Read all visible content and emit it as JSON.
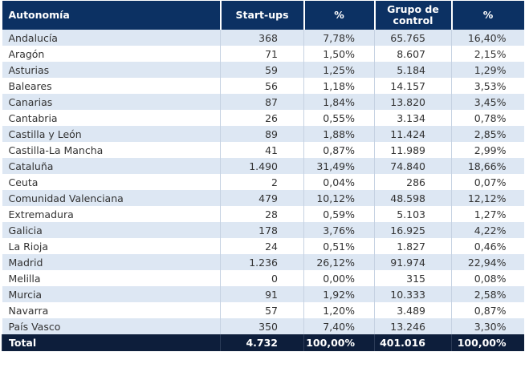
{
  "table": {
    "header": [
      "Autonomía",
      "Start-ups",
      "%",
      "Grupo de control",
      "%"
    ],
    "rows": [
      [
        "Andalucía",
        "368",
        "7,78%",
        "65.765",
        "16,40%"
      ],
      [
        "Aragón",
        "71",
        "1,50%",
        "8.607",
        "2,15%"
      ],
      [
        "Asturias",
        "59",
        "1,25%",
        "5.184",
        "1,29%"
      ],
      [
        "Baleares",
        "56",
        "1,18%",
        "14.157",
        "3,53%"
      ],
      [
        "Canarias",
        "87",
        "1,84%",
        "13.820",
        "3,45%"
      ],
      [
        "Cantabria",
        "26",
        "0,55%",
        "3.134",
        "0,78%"
      ],
      [
        "Castilla y León",
        "89",
        "1,88%",
        "11.424",
        "2,85%"
      ],
      [
        "Castilla-La Mancha",
        "41",
        "0,87%",
        "11.989",
        "2,99%"
      ],
      [
        "Cataluña",
        "1.490",
        "31,49%",
        "74.840",
        "18,66%"
      ],
      [
        "Ceuta",
        "2",
        "0,04%",
        "286",
        "0,07%"
      ],
      [
        "Comunidad Valenciana",
        "479",
        "10,12%",
        "48.598",
        "12,12%"
      ],
      [
        "Extremadura",
        "28",
        "0,59%",
        "5.103",
        "1,27%"
      ],
      [
        "Galicia",
        "178",
        "3,76%",
        "16.925",
        "4,22%"
      ],
      [
        "La Rioja",
        "24",
        "0,51%",
        "1.827",
        "0,46%"
      ],
      [
        "Madrid",
        "1.236",
        "26,12%",
        "91.974",
        "22,94%"
      ],
      [
        "Melilla",
        "0",
        "0,00%",
        "315",
        "0,08%"
      ],
      [
        "Murcia",
        "91",
        "1,92%",
        "10.333",
        "2,58%"
      ],
      [
        "Navarra",
        "57",
        "1,20%",
        "3.489",
        "0,87%"
      ],
      [
        "País Vasco",
        "350",
        "7,40%",
        "13.246",
        "3,30%"
      ]
    ],
    "total": [
      "Total",
      "4.732",
      "100,00%",
      "401.016",
      "100,00%"
    ]
  }
}
